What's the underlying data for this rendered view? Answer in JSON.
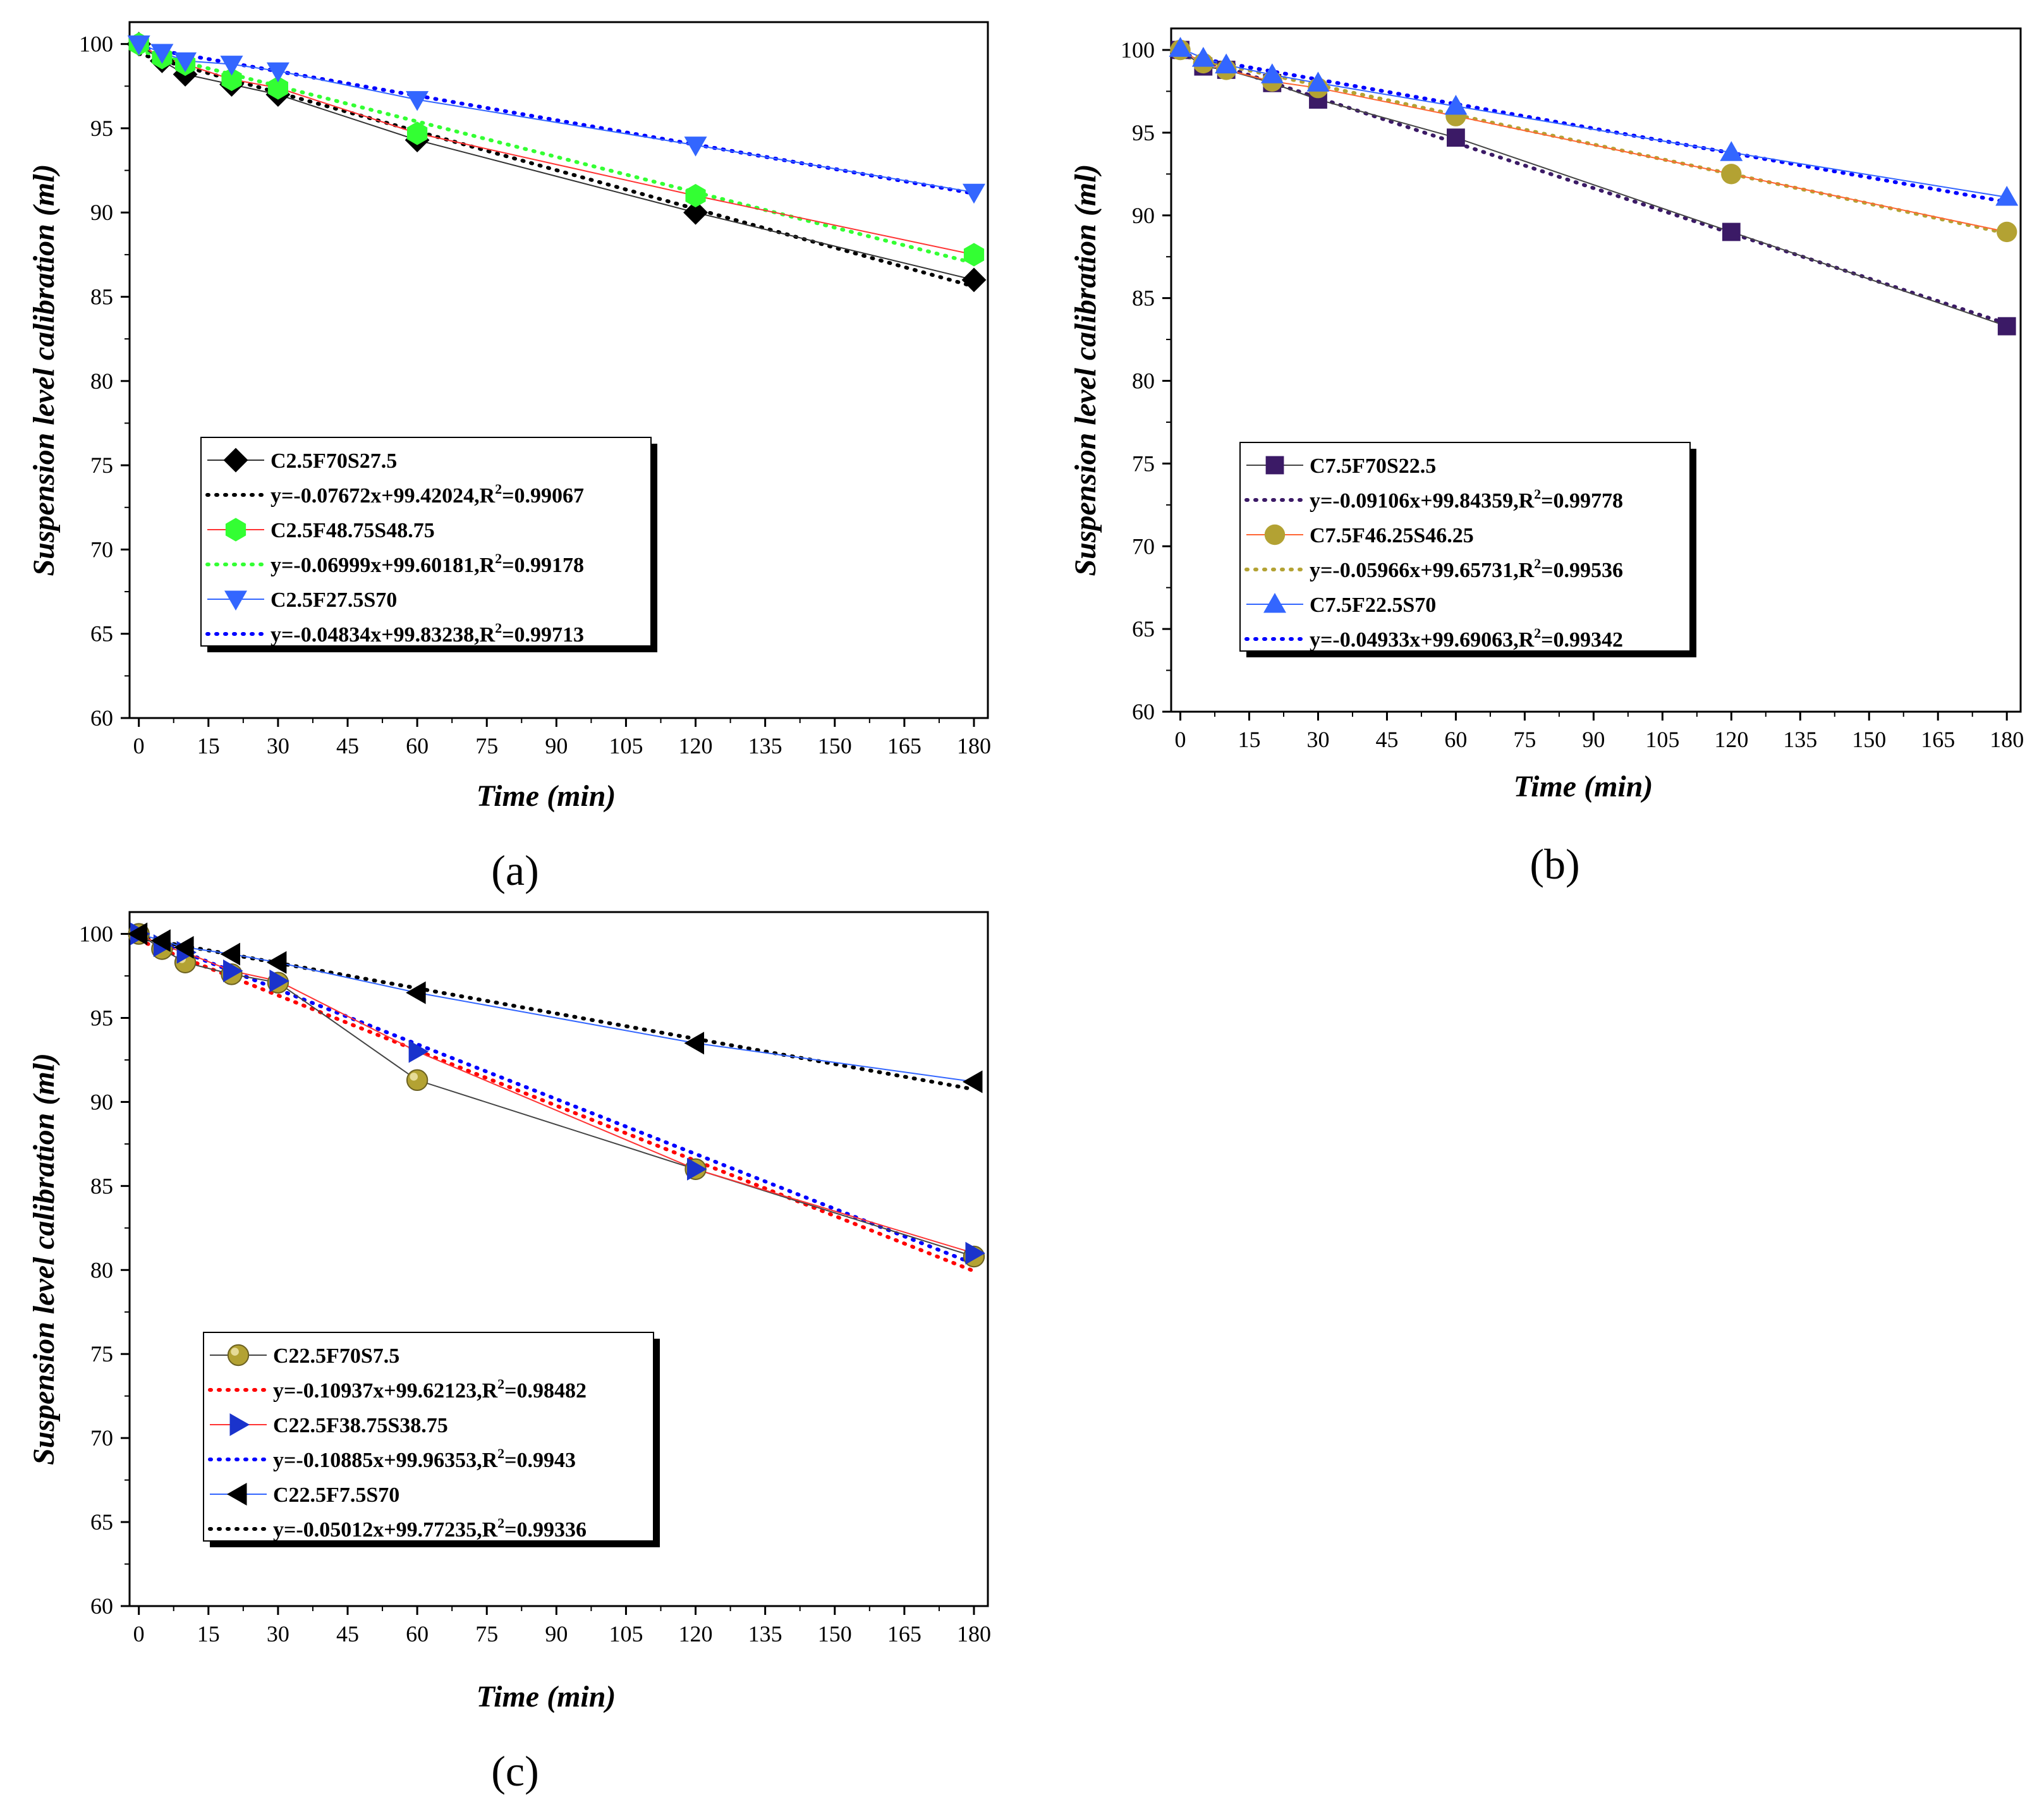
{
  "chart_data": [
    {
      "type": "line",
      "panel_label": "(a)",
      "xlabel": "Time (min)",
      "ylabel": "Suspension level calibration (ml)",
      "xlim": [
        -2,
        183
      ],
      "ylim": [
        60,
        101.3
      ],
      "xticks": [
        0,
        15,
        30,
        45,
        60,
        75,
        90,
        105,
        120,
        135,
        150,
        165,
        180
      ],
      "yticks": [
        60,
        65,
        70,
        75,
        80,
        85,
        90,
        95,
        100
      ],
      "legend_position": "lower-left",
      "series": [
        {
          "name": "C2.5F70S27.5",
          "marker": "diamond",
          "marker_color": "#000000",
          "line_color": "#333333",
          "x": [
            0,
            5,
            10,
            20,
            30,
            60,
            120,
            180
          ],
          "y": [
            100,
            99,
            98.2,
            97.6,
            97,
            94.3,
            90,
            86
          ],
          "fit": {
            "label": "y=-0.07672x+99.42024,R2=0.99067",
            "eq_prefix": "y=-0.07672x+99.42024,R",
            "eq_suffix": "=0.99067",
            "slope": -0.07672,
            "intercept": 99.42024,
            "color": "#000000"
          }
        },
        {
          "name": "C2.5F48.75S48.75",
          "marker": "hexagon",
          "marker_color": "#33ff33",
          "line_color": "#ff3333",
          "x": [
            0,
            5,
            10,
            20,
            30,
            60,
            120,
            180
          ],
          "y": [
            100,
            99.2,
            98.8,
            97.9,
            97.4,
            94.7,
            91,
            87.5
          ],
          "fit": {
            "label": "y=-0.06999x+99.60181,R2=0.99178",
            "eq_prefix": "y=-0.06999x+99.60181,R",
            "eq_suffix": "=0.99178",
            "slope": -0.06999,
            "intercept": 99.60181,
            "color": "#33ff33"
          }
        },
        {
          "name": "C2.5F27.5S70",
          "marker": "triangle-down",
          "marker_color": "#3366ff",
          "line_color": "#3366ff",
          "x": [
            0,
            5,
            10,
            20,
            30,
            60,
            120,
            180
          ],
          "y": [
            100,
            99.5,
            99,
            98.8,
            98.4,
            96.7,
            94,
            91.2
          ],
          "fit": {
            "label": "y=-0.04834x+99.83238,R2=0.99713",
            "eq_prefix": "y=-0.04834x+99.83238,R",
            "eq_suffix": "=0.99713",
            "slope": -0.04834,
            "intercept": 99.83238,
            "color": "#0000ff"
          }
        }
      ]
    },
    {
      "type": "line",
      "panel_label": "(b)",
      "xlabel": "Time (min)",
      "ylabel": "Suspension level calibration (ml)",
      "xlim": [
        -2,
        183
      ],
      "ylim": [
        60,
        101.3
      ],
      "xticks": [
        0,
        15,
        30,
        45,
        60,
        75,
        90,
        105,
        120,
        135,
        150,
        165,
        180
      ],
      "yticks": [
        60,
        65,
        70,
        75,
        80,
        85,
        90,
        95,
        100
      ],
      "legend_position": "lower-left",
      "series": [
        {
          "name": "C7.5F70S22.5",
          "marker": "square",
          "marker_color": "#3b1a66",
          "line_color": "#444444",
          "x": [
            0,
            5,
            10,
            20,
            30,
            60,
            120,
            180
          ],
          "y": [
            100,
            99,
            98.8,
            98,
            97,
            94.7,
            89,
            83.3
          ],
          "fit": {
            "label": "y=-0.09106x+99.84359,R2=0.99778",
            "eq_prefix": "y=-0.09106x+99.84359,R",
            "eq_suffix": "=0.99778",
            "slope": -0.09106,
            "intercept": 99.84359,
            "color": "#3b1a66"
          }
        },
        {
          "name": "C7.5F46.25S46.25",
          "marker": "circle",
          "marker_color": "#b3a233",
          "line_color": "#ff6633",
          "x": [
            0,
            5,
            10,
            20,
            30,
            60,
            120,
            180
          ],
          "y": [
            100,
            99.2,
            98.8,
            98.1,
            97.7,
            96,
            92.5,
            89
          ],
          "fit": {
            "label": "y=-0.05966x+99.65731,R2=0.99536",
            "eq_prefix": "y=-0.05966x+99.65731,R",
            "eq_suffix": "=0.99536",
            "slope": -0.05966,
            "intercept": 99.65731,
            "color": "#b3a233"
          }
        },
        {
          "name": "C7.5F22.5S70",
          "marker": "triangle-up",
          "marker_color": "#3366ff",
          "line_color": "#3366ff",
          "x": [
            0,
            5,
            10,
            20,
            30,
            60,
            120,
            180
          ],
          "y": [
            100.1,
            99.5,
            99.1,
            98.5,
            98,
            96.6,
            93.8,
            91.1
          ],
          "fit": {
            "label": "y=-0.04933x+99.69063,R2=0.99342",
            "eq_prefix": "y=-0.04933x+99.69063,R",
            "eq_suffix": "=0.99342",
            "slope": -0.04933,
            "intercept": 99.69063,
            "color": "#0000ff"
          }
        }
      ]
    },
    {
      "type": "line",
      "panel_label": "(c)",
      "xlabel": "Time (min)",
      "ylabel": "Suspension level calibration (ml)",
      "xlim": [
        -2,
        183
      ],
      "ylim": [
        60,
        101.3
      ],
      "xticks": [
        0,
        15,
        30,
        45,
        60,
        75,
        90,
        105,
        120,
        135,
        150,
        165,
        180
      ],
      "yticks": [
        60,
        65,
        70,
        75,
        80,
        85,
        90,
        95,
        100
      ],
      "legend_position": "lower-left",
      "series": [
        {
          "name": "C22.5F70S7.5",
          "marker": "sphere",
          "marker_color": "#b3a233",
          "line_color": "#444444",
          "x": [
            0,
            5,
            10,
            20,
            30,
            60,
            120,
            180
          ],
          "y": [
            100,
            99.1,
            98.3,
            97.6,
            97.1,
            91.3,
            86,
            80.8
          ],
          "fit": {
            "label": "y=-0.10937x+99.62123,R2=0.98482",
            "eq_prefix": "y=-0.10937x+99.62123,R",
            "eq_suffix": "=0.98482",
            "slope": -0.10937,
            "intercept": 99.62123,
            "color": "#ff0000"
          }
        },
        {
          "name": "C22.5F38.75S38.75",
          "marker": "triangle-right",
          "marker_color": "#1a33cc",
          "line_color": "#ff3333",
          "x": [
            0,
            5,
            10,
            20,
            30,
            60,
            120,
            180
          ],
          "y": [
            100,
            99.3,
            98.9,
            97.8,
            97.2,
            93,
            86,
            81
          ],
          "fit": {
            "label": "y=-0.10885x+99.96353,R2=0.9943",
            "eq_prefix": "y=-0.10885x+99.96353,R",
            "eq_suffix": "=0.9943",
            "slope": -0.10885,
            "intercept": 99.96353,
            "color": "#0000ff"
          }
        },
        {
          "name": "C22.5F7.5S70",
          "marker": "triangle-left",
          "marker_color": "#000000",
          "line_color": "#3366ff",
          "x": [
            0,
            5,
            10,
            20,
            30,
            60,
            120,
            180
          ],
          "y": [
            100,
            99.6,
            99.2,
            98.8,
            98.3,
            96.5,
            93.5,
            91.2
          ],
          "fit": {
            "label": "y=-0.05012x+99.77235,R2=0.99336",
            "eq_prefix": "y=-0.05012x+99.77235,R",
            "eq_suffix": "=0.99336",
            "slope": -0.05012,
            "intercept": 99.77235,
            "color": "#000000"
          }
        }
      ]
    }
  ]
}
